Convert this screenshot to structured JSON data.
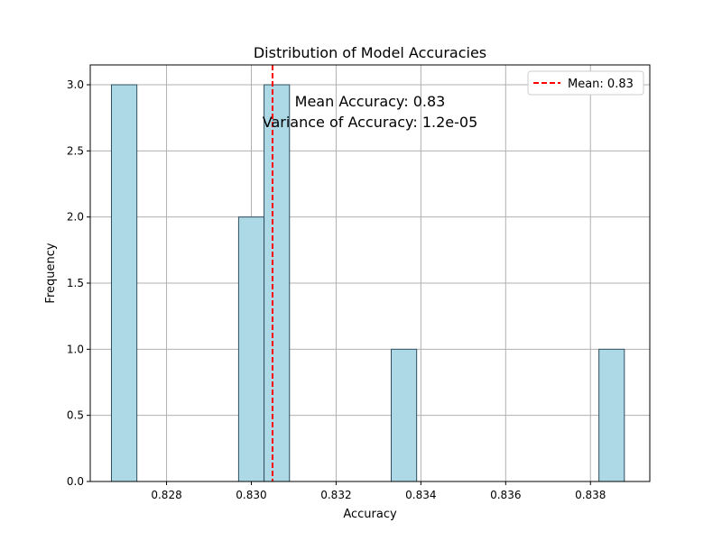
{
  "chart_data": {
    "type": "bar",
    "title": "Distribution of Model Accuracies",
    "xlabel": "Accuracy",
    "ylabel": "Frequency",
    "xlim": [
      0.8262,
      0.8394
    ],
    "ylim": [
      0,
      3.15
    ],
    "xticks": [
      "0.828",
      "0.830",
      "0.832",
      "0.834",
      "0.836",
      "0.838"
    ],
    "xtick_values": [
      0.828,
      0.83,
      0.832,
      0.834,
      0.836,
      0.838
    ],
    "yticks": [
      "0.0",
      "0.5",
      "1.0",
      "1.5",
      "2.0",
      "2.5",
      "3.0"
    ],
    "ytick_values": [
      0,
      0.5,
      1.0,
      1.5,
      2.0,
      2.5,
      3.0
    ],
    "bins": [
      {
        "x0": 0.8267,
        "x1": 0.8273,
        "count": 3
      },
      {
        "x0": 0.8297,
        "x1": 0.8303,
        "count": 2
      },
      {
        "x0": 0.8303,
        "x1": 0.8309,
        "count": 3
      },
      {
        "x0": 0.8333,
        "x1": 0.8339,
        "count": 1
      },
      {
        "x0": 0.8382,
        "x1": 0.8388,
        "count": 1
      }
    ],
    "mean_line": {
      "value": 0.8305,
      "label": "Mean: 0.83",
      "color": "#ff0000"
    },
    "annotations": [
      "Mean Accuracy: 0.83",
      "Variance of Accuracy: 1.2e-05"
    ],
    "bar_color": "#add8e6",
    "bar_edge_color": "#2f4f5f",
    "grid": true,
    "legend_position": "top-right"
  }
}
